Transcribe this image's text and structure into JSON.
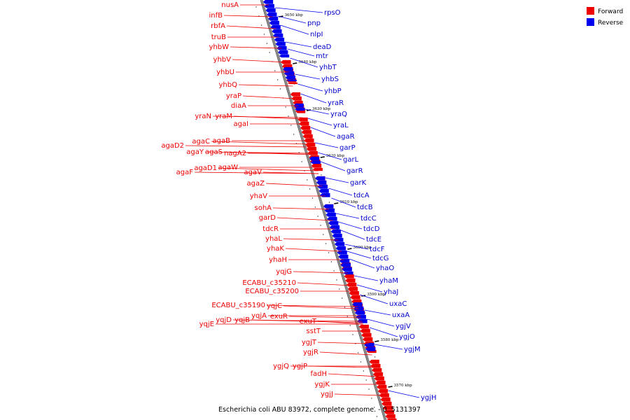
{
  "caption": "Escherichia coli ABU 83972, complete genome. - 0..5131397",
  "legend": [
    {
      "label": "Forward",
      "color": "#ee0000"
    },
    {
      "label": "Reverse",
      "color": "#0000ee"
    }
  ],
  "colors": {
    "forward": "#ee0000",
    "reverse": "#0000ee",
    "backbone": "#888888"
  },
  "kbp_ticks": [
    "3650 kbp",
    "3640 kbp",
    "3630 kbp",
    "3620 kbp",
    "3610 kbp",
    "3600 kbp",
    "3590 kbp",
    "3580 kbp",
    "3570 kbp"
  ],
  "forward_genes": [
    "nusA",
    "infB",
    "rbfA",
    "truB",
    "yhbW",
    "yhbV",
    "yhbU",
    "yhbQ",
    "yraP",
    "diaA",
    "yraN",
    "yraM",
    "agaI",
    "agaD2",
    "agaC",
    "agaB",
    "agaY",
    "agaS",
    "nagA2",
    "agaF",
    "agaD1",
    "agaW",
    "agaV",
    "agaZ",
    "yhaV",
    "sohA",
    "garD",
    "tdcR",
    "yhaL",
    "yhaK",
    "yhaH",
    "yqjG",
    "ECABU_c35210",
    "ECABU_c35200",
    "ECABU_c35190",
    "yqjC",
    "yqjE",
    "yqjD",
    "yqjB",
    "yqjA",
    "exuR",
    "exuT",
    "sstT",
    "ygjT",
    "ygjR",
    "ygjQ",
    "ygjP",
    "fadH",
    "ygjK",
    "ygjJ"
  ],
  "reverse_genes": [
    "rpsO",
    "pnp",
    "nlpI",
    "deaD",
    "mtr",
    "yhbT",
    "yhbS",
    "yhbP",
    "yraR",
    "yraQ",
    "yraL",
    "agaR",
    "garP",
    "garL",
    "garR",
    "garK",
    "tdcA",
    "tdcB",
    "tdcC",
    "tdcD",
    "tdcE",
    "tdcF",
    "tdcG",
    "yhaO",
    "yhaM",
    "yhaJ",
    "uxaC",
    "uxaA",
    "ygjV",
    "ygjO",
    "ygjM",
    "ygjH"
  ]
}
